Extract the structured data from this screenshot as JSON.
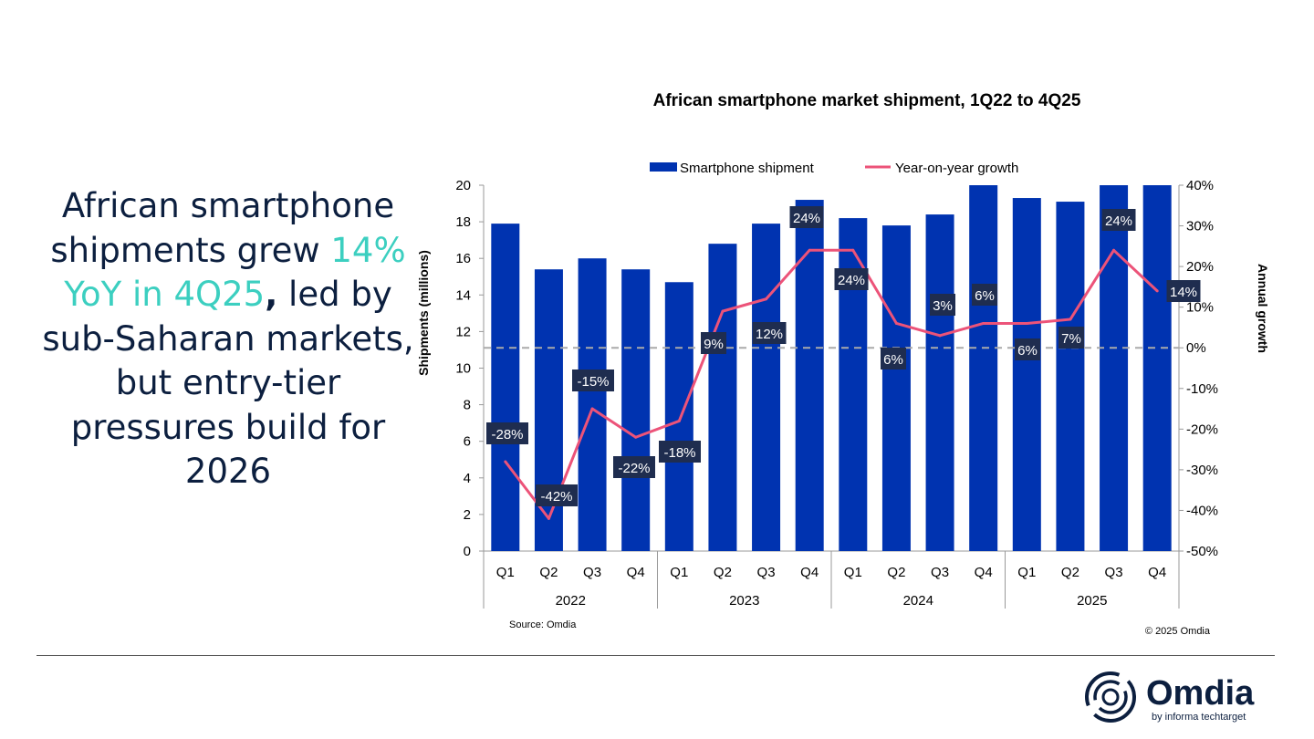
{
  "headline": {
    "part1": "African smartphone shipments grew ",
    "highlight": "14% YoY in 4Q25",
    "comma": ",",
    "part2": " led by sub-Saharan markets, but entry-tier pressures build for 2026"
  },
  "colors": {
    "bar": "#0033b0",
    "line": "#ec5379",
    "label_bg": "#1f2d4f",
    "highlight": "#3ccfc0",
    "text": "#0c1f3f"
  },
  "chart_data": {
    "type": "bar+line",
    "title": "African smartphone market shipment, 1Q22 to 4Q25",
    "ylabel": "Shipments (millions)",
    "y2label": "Annual growth",
    "ylim": [
      0,
      20
    ],
    "y2lim": [
      -50,
      40
    ],
    "yticks": [
      "0",
      "2",
      "4",
      "6",
      "8",
      "10",
      "12",
      "14",
      "16",
      "18",
      "20"
    ],
    "y2ticks": [
      "-50%",
      "-40%",
      "-30%",
      "-20%",
      "-10%",
      "0%",
      "10%",
      "20%",
      "30%",
      "40%"
    ],
    "categories": [
      "Q1",
      "Q2",
      "Q3",
      "Q4",
      "Q1",
      "Q2",
      "Q3",
      "Q4",
      "Q1",
      "Q2",
      "Q3",
      "Q4",
      "Q1",
      "Q2",
      "Q3",
      "Q4"
    ],
    "groups": [
      "2022",
      "2023",
      "2024",
      "2025"
    ],
    "legend_position": "top",
    "series": [
      {
        "name": "Smartphone shipment",
        "type": "bar",
        "axis": "left",
        "values": [
          17.9,
          15.4,
          16.0,
          15.4,
          14.7,
          16.8,
          17.9,
          19.2,
          18.2,
          17.8,
          18.4,
          20.0,
          19.3,
          19.1,
          20.0,
          20.0
        ]
      },
      {
        "name": "Year-on-year growth",
        "type": "line",
        "axis": "right",
        "values": [
          -28,
          -42,
          -15,
          -22,
          -18,
          9,
          12,
          24,
          24,
          6,
          3,
          6,
          6,
          7,
          24,
          14
        ],
        "data_labels": [
          "-28%",
          "-42%",
          "-15%",
          "-22%",
          "-18%",
          "9%",
          "12%",
          "24%",
          "24%",
          "6%",
          "3%",
          "6%",
          "6%",
          "7%",
          "24%",
          "14%"
        ]
      }
    ],
    "reference_line": "0% growth (dashed)",
    "source": "Source: Omdia",
    "copyright": "© 2025 Omdia"
  },
  "logo": {
    "name": "Omdia",
    "tagline": "by informa techtarget"
  }
}
